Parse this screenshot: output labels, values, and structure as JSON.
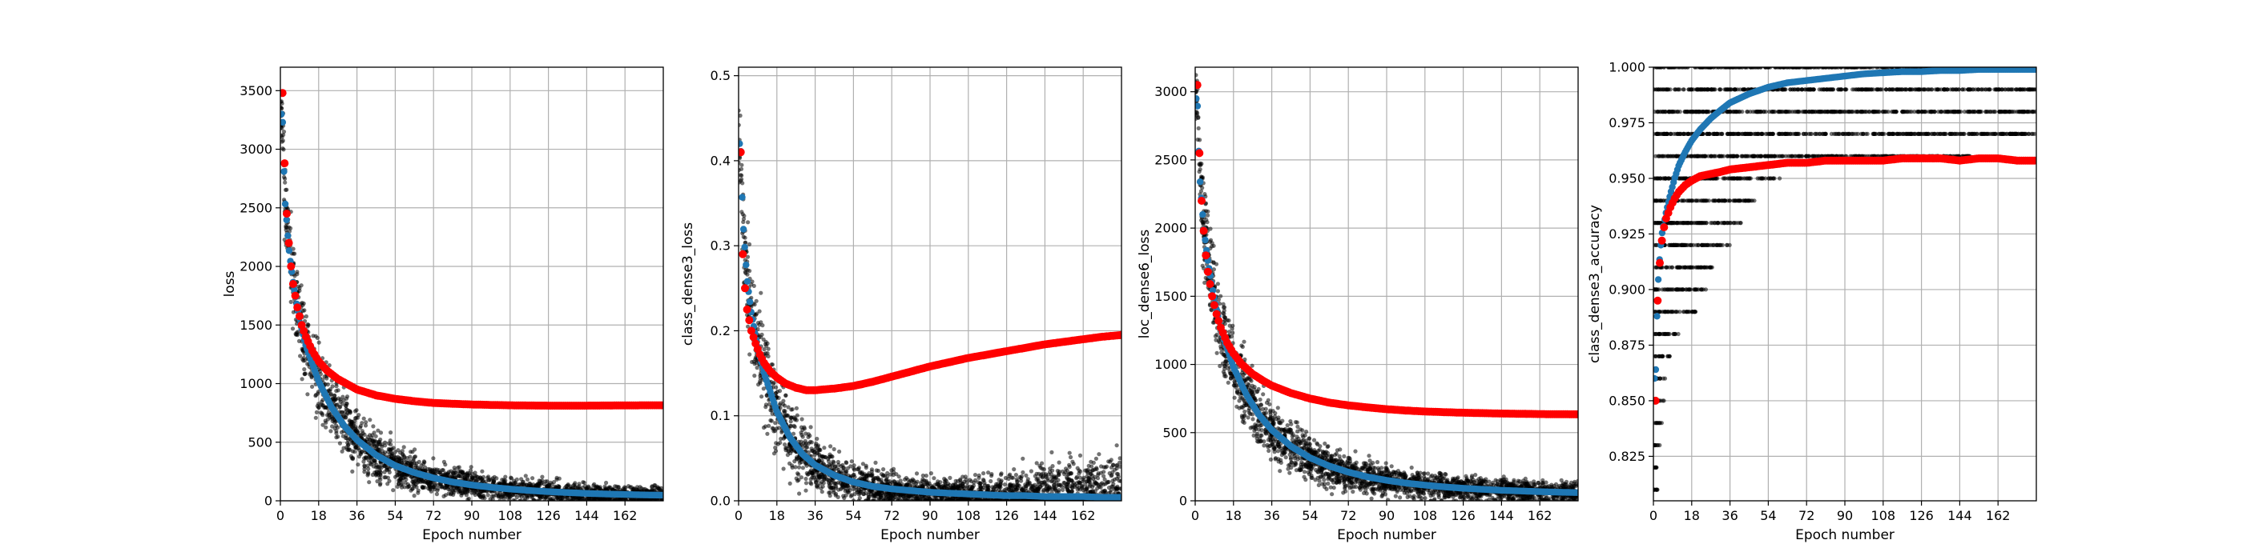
{
  "figure": {
    "background": "#ffffff"
  },
  "colors": {
    "train_step": "#000000",
    "train_epoch": "#1f77b4",
    "validation": "#ff0000",
    "grid": "#b0b0b0"
  },
  "chart_data": [
    {
      "type": "scatter",
      "title": "",
      "xlabel": "Epoch number",
      "ylabel": "loss",
      "xlim": [
        0,
        180
      ],
      "ylim": [
        0,
        3700
      ],
      "xticks": [
        "0",
        "18",
        "36",
        "54",
        "72",
        "90",
        "108",
        "126",
        "144",
        "162"
      ],
      "yticks": [
        "0",
        "500",
        "1000",
        "1500",
        "2000",
        "2500",
        "3000",
        "3500"
      ],
      "grid": true,
      "series": [
        {
          "role": "train_step",
          "color": "#000000",
          "x": [
            1,
            2,
            4,
            6,
            9,
            12,
            18,
            24,
            30,
            36,
            45,
            54,
            63,
            72,
            81,
            90,
            99,
            108,
            117,
            126,
            135,
            144,
            153,
            162,
            171,
            180
          ],
          "center": [
            3300,
            2600,
            2150,
            1850,
            1550,
            1320,
            1020,
            800,
            640,
            520,
            390,
            300,
            240,
            195,
            160,
            135,
            115,
            100,
            88,
            78,
            70,
            63,
            58,
            54,
            50,
            48
          ],
          "spread": [
            400,
            600,
            650,
            700,
            680,
            650,
            580,
            520,
            460,
            420,
            360,
            310,
            270,
            240,
            215,
            195,
            180,
            170,
            160,
            155,
            150,
            145,
            140,
            135,
            132,
            130
          ]
        },
        {
          "role": "train_epoch",
          "color": "#1f77b4",
          "x": [
            1,
            2,
            4,
            6,
            9,
            12,
            18,
            24,
            30,
            36,
            45,
            54,
            63,
            72,
            81,
            90,
            99,
            108,
            117,
            126,
            135,
            144,
            153,
            162,
            171,
            180
          ],
          "y": [
            3300,
            2600,
            2150,
            1850,
            1550,
            1320,
            1020,
            800,
            640,
            520,
            390,
            300,
            240,
            195,
            160,
            135,
            115,
            100,
            88,
            78,
            70,
            63,
            58,
            54,
            50,
            48
          ]
        },
        {
          "role": "validation",
          "color": "#ff0000",
          "x": [
            1,
            2,
            3,
            4,
            5,
            6,
            8,
            10,
            12,
            15,
            18,
            22,
            27,
            32,
            36,
            45,
            54,
            63,
            72,
            81,
            90,
            99,
            108,
            117,
            126,
            135,
            144,
            153,
            162,
            171,
            180
          ],
          "y": [
            3480,
            2880,
            2450,
            2200,
            2000,
            1850,
            1650,
            1500,
            1400,
            1280,
            1190,
            1110,
            1040,
            990,
            950,
            900,
            870,
            850,
            835,
            828,
            822,
            818,
            815,
            813,
            812,
            812,
            812,
            813,
            814,
            815,
            815
          ]
        }
      ]
    },
    {
      "type": "scatter",
      "title": "",
      "xlabel": "Epoch number",
      "ylabel": "class_dense3_loss",
      "xlim": [
        0,
        180
      ],
      "ylim": [
        0,
        0.51
      ],
      "xticks": [
        "0",
        "18",
        "36",
        "54",
        "72",
        "90",
        "108",
        "126",
        "144",
        "162"
      ],
      "yticks": [
        "0.0",
        "0.1",
        "0.2",
        "0.3",
        "0.4",
        "0.5"
      ],
      "grid": true,
      "series": [
        {
          "role": "train_step",
          "color": "#000000",
          "x": [
            1,
            2,
            4,
            6,
            9,
            12,
            18,
            24,
            30,
            36,
            45,
            54,
            63,
            72,
            81,
            90,
            99,
            108,
            117,
            126,
            135,
            144,
            153,
            162,
            171,
            180
          ],
          "center": [
            0.42,
            0.33,
            0.26,
            0.22,
            0.18,
            0.15,
            0.105,
            0.075,
            0.055,
            0.042,
            0.03,
            0.022,
            0.017,
            0.014,
            0.012,
            0.01,
            0.009,
            0.008,
            0.008,
            0.008,
            0.008,
            0.009,
            0.01,
            0.011,
            0.012,
            0.013
          ],
          "spread": [
            0.08,
            0.1,
            0.11,
            0.11,
            0.1,
            0.095,
            0.085,
            0.075,
            0.065,
            0.055,
            0.045,
            0.04,
            0.035,
            0.03,
            0.03,
            0.03,
            0.03,
            0.035,
            0.04,
            0.045,
            0.05,
            0.06,
            0.07,
            0.075,
            0.08,
            0.085
          ]
        },
        {
          "role": "train_epoch",
          "color": "#1f77b4",
          "x": [
            1,
            2,
            4,
            6,
            9,
            12,
            18,
            24,
            30,
            36,
            45,
            54,
            63,
            72,
            81,
            90,
            99,
            108,
            117,
            126,
            135,
            144,
            153,
            162,
            171,
            180
          ],
          "y": [
            0.42,
            0.33,
            0.26,
            0.22,
            0.18,
            0.15,
            0.105,
            0.075,
            0.055,
            0.042,
            0.03,
            0.022,
            0.017,
            0.014,
            0.012,
            0.01,
            0.009,
            0.008,
            0.007,
            0.006,
            0.006,
            0.005,
            0.005,
            0.005,
            0.004,
            0.004
          ]
        },
        {
          "role": "validation",
          "color": "#ff0000",
          "x": [
            1,
            2,
            3,
            4,
            6,
            8,
            10,
            12,
            15,
            18,
            22,
            27,
            32,
            36,
            40,
            45,
            54,
            63,
            72,
            81,
            90,
            99,
            108,
            117,
            126,
            135,
            144,
            153,
            162,
            171,
            180
          ],
          "y": [
            0.41,
            0.29,
            0.25,
            0.225,
            0.2,
            0.185,
            0.172,
            0.162,
            0.152,
            0.145,
            0.138,
            0.133,
            0.13,
            0.13,
            0.131,
            0.132,
            0.135,
            0.14,
            0.146,
            0.152,
            0.158,
            0.163,
            0.168,
            0.172,
            0.176,
            0.18,
            0.184,
            0.187,
            0.19,
            0.193,
            0.195
          ]
        }
      ]
    },
    {
      "type": "scatter",
      "title": "",
      "xlabel": "Epoch number",
      "ylabel": "loc_dense6_loss",
      "xlim": [
        0,
        180
      ],
      "ylim": [
        0,
        3180
      ],
      "xticks": [
        "0",
        "18",
        "36",
        "54",
        "72",
        "90",
        "108",
        "126",
        "144",
        "162"
      ],
      "yticks": [
        "0",
        "500",
        "1000",
        "1500",
        "2000",
        "2500",
        "3000"
      ],
      "grid": true,
      "series": [
        {
          "role": "train_step",
          "color": "#000000",
          "x": [
            1,
            2,
            4,
            6,
            9,
            12,
            18,
            24,
            30,
            36,
            45,
            54,
            63,
            72,
            81,
            90,
            99,
            108,
            117,
            126,
            135,
            144,
            153,
            162,
            171,
            180
          ],
          "center": [
            2950,
            2400,
            2000,
            1750,
            1480,
            1260,
            980,
            780,
            630,
            520,
            400,
            315,
            255,
            210,
            175,
            150,
            130,
            115,
            102,
            92,
            84,
            77,
            72,
            67,
            63,
            60
          ],
          "spread": [
            350,
            550,
            600,
            620,
            600,
            570,
            520,
            470,
            420,
            380,
            330,
            290,
            255,
            230,
            210,
            195,
            185,
            175,
            168,
            162,
            158,
            154,
            150,
            147,
            144,
            142
          ]
        },
        {
          "role": "train_epoch",
          "color": "#1f77b4",
          "x": [
            1,
            2,
            4,
            6,
            9,
            12,
            18,
            24,
            30,
            36,
            45,
            54,
            63,
            72,
            81,
            90,
            99,
            108,
            117,
            126,
            135,
            144,
            153,
            162,
            171,
            180
          ],
          "y": [
            2950,
            2400,
            2000,
            1750,
            1480,
            1260,
            980,
            780,
            630,
            520,
            400,
            315,
            255,
            210,
            175,
            150,
            130,
            115,
            102,
            92,
            84,
            77,
            72,
            67,
            63,
            60
          ]
        },
        {
          "role": "validation",
          "color": "#ff0000",
          "x": [
            1,
            2,
            3,
            4,
            5,
            6,
            8,
            10,
            12,
            15,
            18,
            22,
            27,
            32,
            36,
            45,
            54,
            63,
            72,
            81,
            90,
            99,
            108,
            117,
            126,
            135,
            144,
            153,
            162,
            171,
            180
          ],
          "y": [
            3050,
            2550,
            2200,
            1980,
            1800,
            1680,
            1500,
            1370,
            1270,
            1160,
            1080,
            1000,
            930,
            880,
            845,
            790,
            750,
            720,
            700,
            685,
            672,
            662,
            655,
            650,
            646,
            643,
            640,
            638,
            636,
            635,
            634
          ]
        }
      ]
    },
    {
      "type": "scatter",
      "title": "",
      "xlabel": "Epoch number",
      "ylabel": "class_dense3_accuracy",
      "xlim": [
        0,
        180
      ],
      "ylim": [
        0.805,
        1.0
      ],
      "xticks": [
        "0",
        "18",
        "36",
        "54",
        "72",
        "90",
        "108",
        "126",
        "144",
        "162"
      ],
      "yticks": [
        "0.825",
        "0.850",
        "0.875",
        "0.900",
        "0.925",
        "0.950",
        "0.975",
        "1.000"
      ],
      "grid": true,
      "series": [
        {
          "role": "train_step_levels",
          "color": "#000000",
          "levels": [
            1.0,
            0.99,
            0.98,
            0.97,
            0.96,
            0.95,
            0.94,
            0.93,
            0.92,
            0.91,
            0.9,
            0.89,
            0.88,
            0.87,
            0.86,
            0.85,
            0.84,
            0.83,
            0.82,
            0.81
          ],
          "level_xmax": [
            180,
            180,
            180,
            180,
            150,
            60,
            48,
            42,
            36,
            28,
            25,
            20,
            12,
            8,
            6,
            5,
            4,
            3,
            2,
            2
          ]
        },
        {
          "role": "train_epoch",
          "color": "#1f77b4",
          "x": [
            1,
            2,
            3,
            4,
            6,
            8,
            10,
            12,
            15,
            18,
            22,
            27,
            32,
            36,
            45,
            54,
            63,
            72,
            81,
            90,
            99,
            108,
            117,
            126,
            135,
            144,
            153,
            162,
            171,
            180
          ],
          "y": [
            0.86,
            0.9,
            0.915,
            0.925,
            0.935,
            0.943,
            0.95,
            0.956,
            0.962,
            0.967,
            0.972,
            0.977,
            0.981,
            0.984,
            0.988,
            0.991,
            0.993,
            0.994,
            0.995,
            0.996,
            0.997,
            0.9975,
            0.998,
            0.998,
            0.9985,
            0.9985,
            0.999,
            0.999,
            0.999,
            0.999
          ]
        },
        {
          "role": "validation",
          "color": "#ff0000",
          "x": [
            1,
            2,
            3,
            4,
            5,
            6,
            8,
            10,
            12,
            15,
            18,
            22,
            27,
            32,
            36,
            45,
            54,
            63,
            72,
            81,
            90,
            99,
            108,
            117,
            126,
            135,
            144,
            153,
            162,
            171,
            180
          ],
          "y": [
            0.85,
            0.895,
            0.912,
            0.922,
            0.928,
            0.932,
            0.937,
            0.941,
            0.944,
            0.947,
            0.949,
            0.951,
            0.952,
            0.953,
            0.954,
            0.955,
            0.956,
            0.957,
            0.957,
            0.958,
            0.958,
            0.958,
            0.958,
            0.959,
            0.959,
            0.959,
            0.958,
            0.959,
            0.959,
            0.958,
            0.958
          ]
        }
      ]
    }
  ]
}
